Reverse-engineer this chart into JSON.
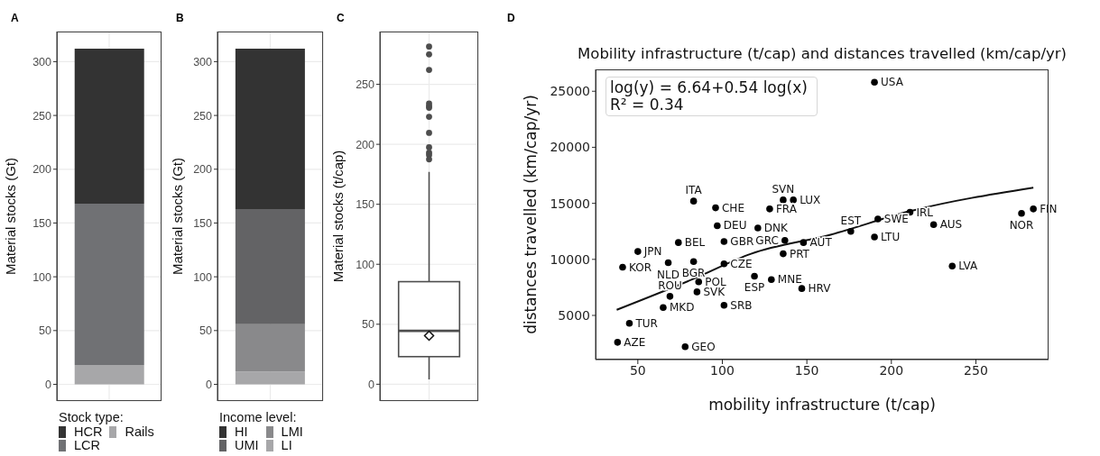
{
  "chart_data": [
    {
      "type": "bar",
      "stacked": true,
      "categories": [
        null
      ],
      "series": [
        {
          "name": "Rails",
          "color": "#a7a7a9",
          "values": [
            18
          ]
        },
        {
          "name": "LCR",
          "color": "#707174",
          "values": [
            150
          ]
        },
        {
          "name": "HCR",
          "color": "#333333",
          "values": [
            144
          ]
        }
      ],
      "ylabel": "Material stocks (Gt)",
      "ylim": [
        -15.5,
        328
      ],
      "yticks": [
        0,
        50,
        100,
        150,
        200,
        250,
        300
      ],
      "grid": true,
      "legend": "bottom",
      "legend_title": "Stock type:",
      "annotations": [
        "A"
      ]
    },
    {
      "type": "bar",
      "stacked": true,
      "categories": [
        null
      ],
      "series": [
        {
          "name": "LI",
          "color": "#a7a7a9",
          "values": [
            12
          ]
        },
        {
          "name": "LMI",
          "color": "#89898b",
          "values": [
            44
          ]
        },
        {
          "name": "UMI",
          "color": "#636365",
          "values": [
            107
          ]
        },
        {
          "name": "HI",
          "color": "#333333",
          "values": [
            149
          ]
        }
      ],
      "ylabel": "Material stocks (Gt)",
      "ylim": [
        -15.5,
        328
      ],
      "yticks": [
        0,
        50,
        100,
        150,
        200,
        250,
        300
      ],
      "grid": true,
      "legend": "bottom",
      "legend_title": "Income level:",
      "annotations": [
        "B"
      ]
    },
    {
      "type": "box",
      "categories": [
        null
      ],
      "boxes": [
        {
          "low": 4,
          "q1": 23,
          "median": 44.5,
          "q3": 85.5,
          "high": 177,
          "mean": 40.5,
          "outliers": [
            281.5,
            275,
            262,
            234,
            232,
            230.5,
            223,
            209.5,
            197.5,
            193,
            191,
            187.5
          ]
        }
      ],
      "ylabel": "Material stocks (t/cap)",
      "ylim": [
        -14,
        294
      ],
      "yticks": [
        0,
        50,
        100,
        150,
        200,
        250
      ],
      "grid": true,
      "annotations": [
        "C"
      ]
    },
    {
      "type": "scatter",
      "title": "Mobility infrastructure (t/cap) and distances travelled (km/cap/yr)",
      "xlabel": "mobility infrastructure (t/cap)",
      "ylabel": "distances travelled (km/cap/yr)",
      "xlim": [
        25,
        293
      ],
      "xticks": [
        50,
        100,
        150,
        200,
        250
      ],
      "ylim": [
        1060,
        26950
      ],
      "yticks": [
        5000,
        10000,
        15000,
        20000,
        25000
      ],
      "series": [
        {
          "type": "scatter",
          "marker": "circle",
          "color": "#000000",
          "x": [
            83,
            96,
            128,
            136,
            142,
            97,
            121,
            101,
            137,
            148,
            74,
            50,
            136,
            41,
            68,
            83,
            101,
            119,
            129,
            147,
            86,
            85,
            69,
            65,
            101,
            45,
            38,
            78,
            190,
            211,
            192,
            225,
            176,
            190,
            236,
            284,
            277
          ],
          "values": [
            15200,
            14600,
            14500,
            15300,
            15300,
            13000,
            12800,
            11600,
            11700,
            11500,
            11500,
            10700,
            10500,
            9300,
            9700,
            9800,
            9600,
            8500,
            8200,
            7400,
            8000,
            7100,
            6700,
            5700,
            5900,
            4300,
            2600,
            2200,
            25800,
            14200,
            13600,
            13100,
            12500,
            12000,
            9400,
            14500,
            14100
          ],
          "value_labels": [
            "ITA",
            "CHE",
            "FRA",
            "SVN",
            "LUX",
            "DEU",
            "DNK",
            "GBR",
            "GRC",
            "AUT",
            "BEL",
            "JPN",
            "PRT",
            "KOR",
            "NLD",
            "BGR",
            "CZE",
            "ESP",
            "MNE",
            "HRV",
            "POL",
            "SVK",
            "ROU",
            "MKD",
            "SRB",
            "TUR",
            "AZE",
            "GEO",
            "USA",
            "IRL",
            "SWE",
            "AUS",
            "EST",
            "LTU",
            "LVA",
            "FIN",
            "NOR"
          ]
        },
        {
          "type": "line",
          "marker": "none",
          "color": "#111111",
          "x": [
            37.5,
            82,
            117,
            164,
            211,
            284
          ],
          "values": [
            5500,
            8200,
            10500,
            12200,
            14300,
            16400
          ]
        }
      ],
      "annotations": [
        "D",
        "log(y) = 6.64+0.54 log(x)",
        "R² = 0.34"
      ]
    }
  ]
}
